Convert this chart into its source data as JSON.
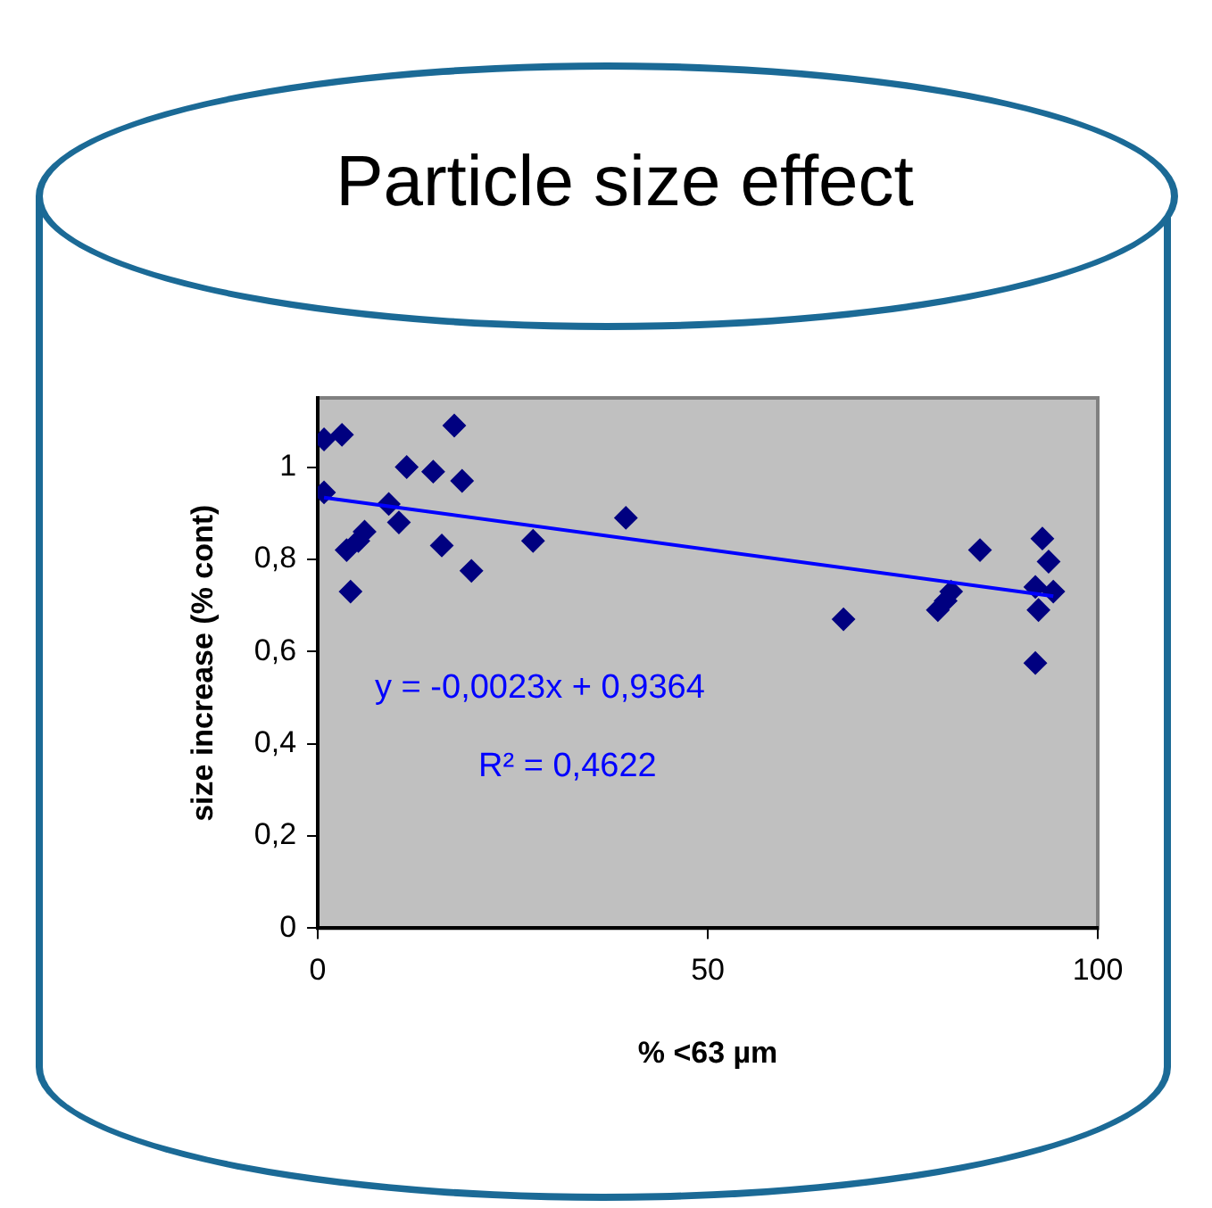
{
  "chart_data": {
    "type": "scatter",
    "title": "Particle size effect",
    "xlabel": "% <63 µm",
    "ylabel": "size increase (% cont)",
    "xlim": [
      0,
      100
    ],
    "xticks": [
      0,
      50,
      100
    ],
    "ylim": [
      0,
      1.15
    ],
    "yticks": [
      0,
      {
        "value": 0.2,
        "label": "0,2"
      },
      {
        "value": 0.4,
        "label": "0,4"
      },
      {
        "value": 0.6,
        "label": "0,6"
      },
      {
        "value": 0.8,
        "label": "0,8"
      },
      1
    ],
    "grid": false,
    "legend": false,
    "marker": "diamond",
    "series": [
      {
        "color": "#000080",
        "x": [
          0.8,
          3.1,
          0.8,
          3.7,
          5.2,
          6.0,
          4.2,
          9.1,
          10.4,
          11.4,
          14.8,
          17.5,
          18.5,
          15.9,
          19.7,
          27.6,
          39.5,
          67.4,
          79.5,
          80.5,
          81.2,
          84.9,
          92.9,
          93.7,
          92.0,
          92.4,
          94.3,
          92.0
        ],
        "values": [
          1.06,
          1.07,
          0.945,
          0.82,
          0.84,
          0.86,
          0.73,
          0.92,
          0.88,
          1.0,
          0.99,
          1.09,
          0.97,
          0.83,
          0.775,
          0.84,
          0.89,
          0.67,
          0.69,
          0.71,
          0.73,
          0.82,
          0.845,
          0.795,
          0.74,
          0.69,
          0.73,
          0.575
        ]
      },
      {
        "type": "line",
        "color": "#0000ff",
        "marker": "none",
        "x": [
          0.8,
          94.3
        ],
        "values": [
          0.934,
          0.72
        ]
      }
    ],
    "annotations": [
      "y = -0,0023x + 0,9364",
      "R² = 0,4622"
    ]
  }
}
